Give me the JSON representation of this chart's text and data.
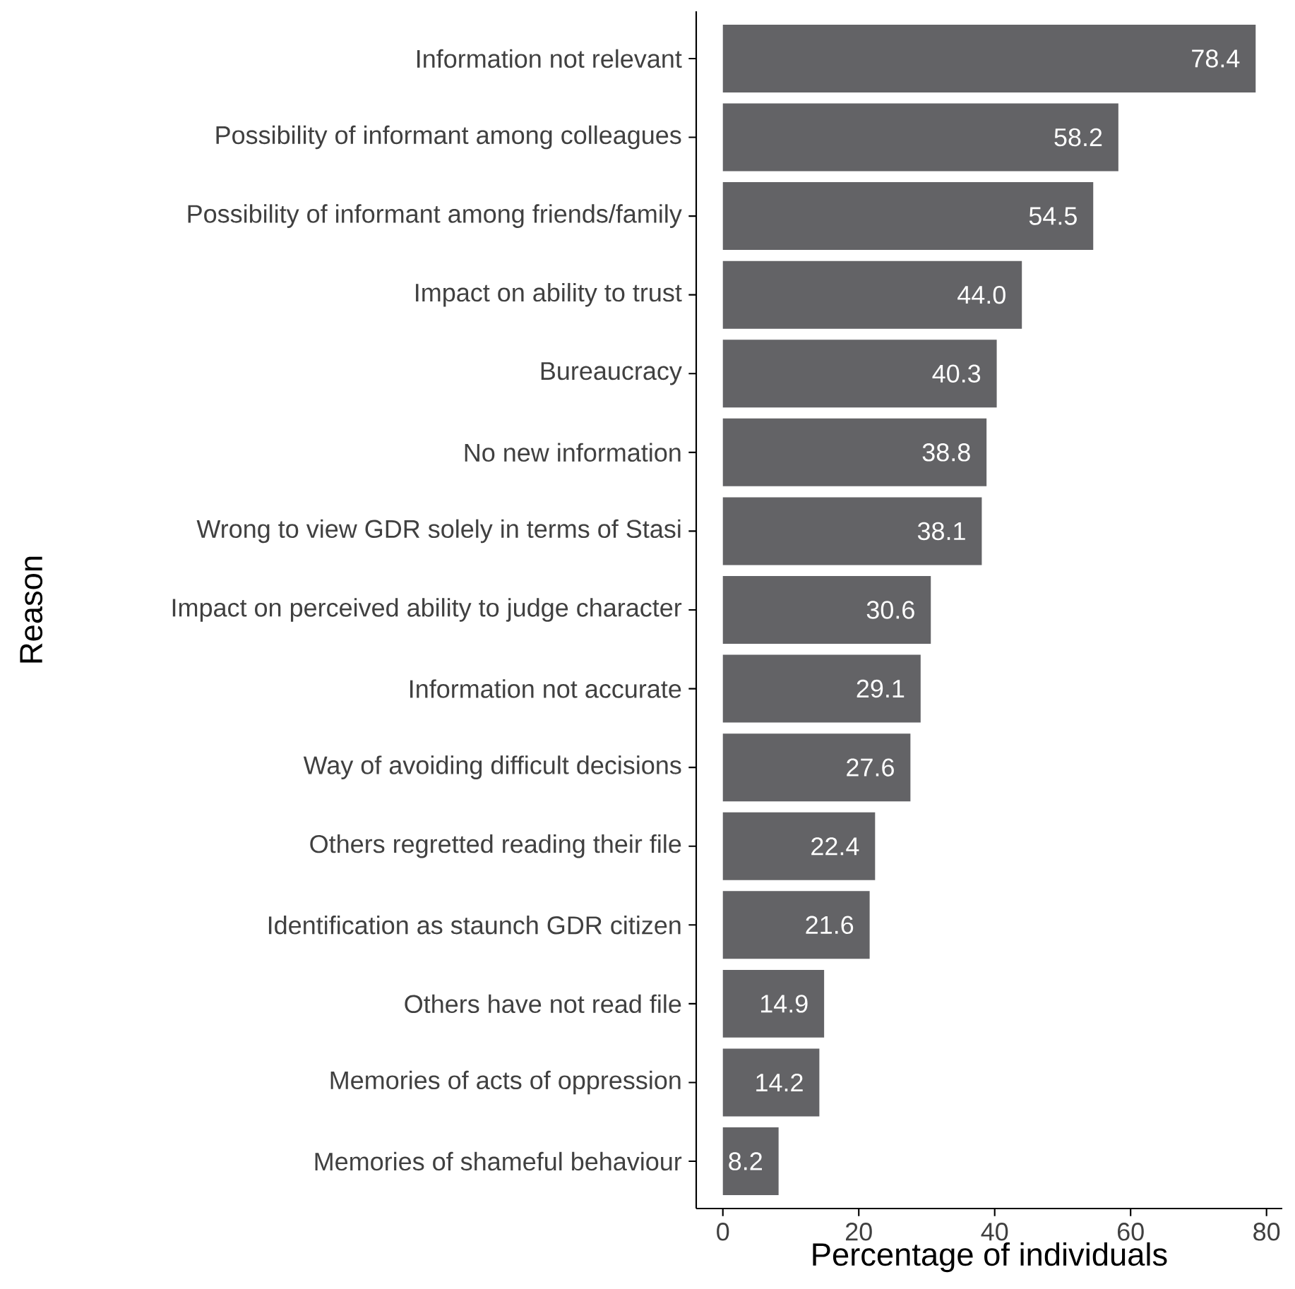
{
  "chart_data": {
    "type": "bar",
    "orientation": "horizontal",
    "xlabel": "Percentage of individuals",
    "ylabel": "Reason",
    "categories": [
      "Information not relevant",
      "Possibility of informant among colleagues",
      "Possibility of informant among friends/family",
      "Impact on ability to trust",
      "Bureaucracy",
      "No new information",
      "Wrong to view GDR solely in terms of Stasi",
      "Impact on perceived ability to judge character",
      "Information not accurate",
      "Way of avoiding difficult decisions",
      "Others regretted reading their file",
      "Identification as staunch GDR citizen",
      "Others have not read file",
      "Memories of acts of oppression",
      "Memories of shameful behaviour"
    ],
    "values": [
      78.4,
      58.2,
      54.5,
      44.0,
      40.3,
      38.8,
      38.1,
      30.6,
      29.1,
      27.6,
      22.4,
      21.6,
      14.9,
      14.2,
      8.2
    ],
    "value_labels": [
      "78.4",
      "58.2",
      "54.5",
      "44.0",
      "40.3",
      "38.8",
      "38.1",
      "30.6",
      "29.1",
      "27.6",
      "22.4",
      "21.6",
      "14.9",
      "14.2",
      "8.2"
    ],
    "color": "#636366",
    "xlim": [
      -3.92,
      82.32
    ],
    "xticks": [
      0,
      20,
      40,
      60,
      80
    ],
    "grid": false
  }
}
